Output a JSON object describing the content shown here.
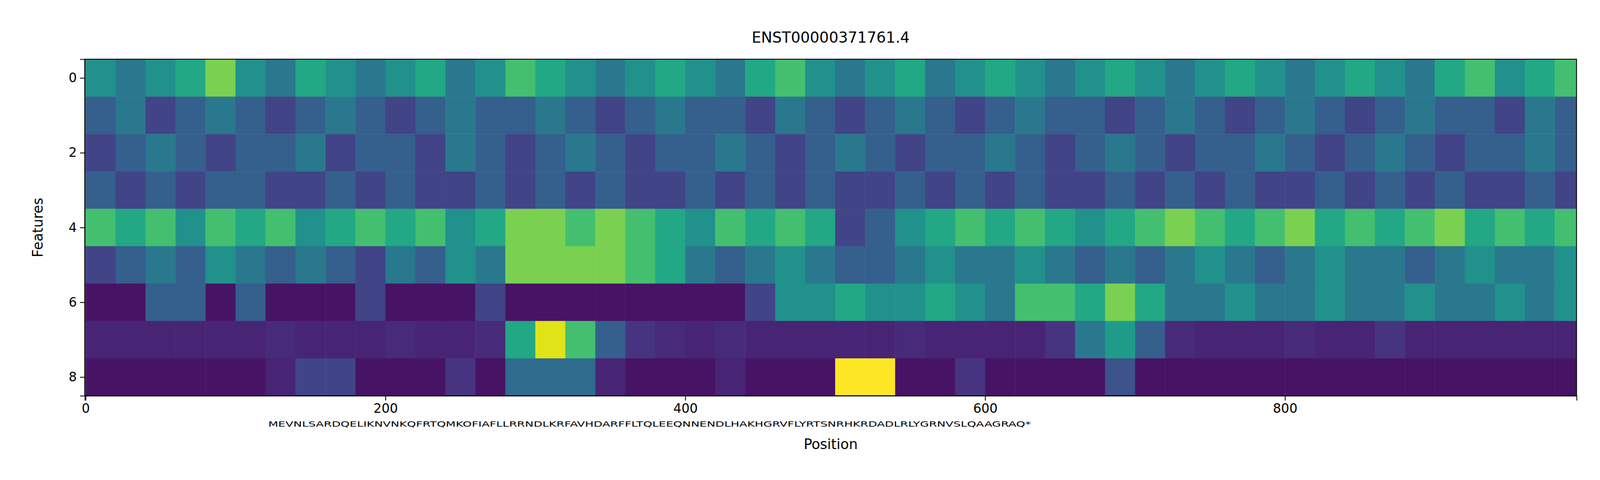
{
  "chart_data": {
    "type": "heatmap",
    "title": "ENST00000371761.4",
    "x_label": "Position",
    "y_label": "Features",
    "annotations": [
      "MEVNLSARDQELIKNVNKQFRTQMKOFIAFLLRRNDLKRFAVHDARFFLTQLEEQNNENDLHAKHGRVFLYRTSNRHKRDADLRLYGRNVSLQAAGRAQ*"
    ],
    "x_edges": [
      0,
      20,
      40,
      60,
      80,
      100,
      120,
      140,
      160,
      180,
      200,
      220,
      240,
      260,
      280,
      300,
      320,
      340,
      360,
      380,
      400,
      420,
      440,
      460,
      480,
      500,
      520,
      540,
      560,
      580,
      600,
      620,
      640,
      660,
      680,
      700,
      720,
      740,
      760,
      780,
      800,
      820,
      840,
      860,
      880,
      900,
      920,
      940,
      960,
      980,
      1000
    ],
    "y": [
      0,
      1,
      2,
      3,
      4,
      5,
      6,
      7,
      8
    ],
    "z": [
      [
        0.5,
        0.4,
        0.5,
        0.6,
        0.8,
        0.5,
        0.4,
        0.6,
        0.5,
        0.4,
        0.5,
        0.6,
        0.4,
        0.5,
        0.7,
        0.6,
        0.5,
        0.4,
        0.5,
        0.6,
        0.5,
        0.4,
        0.6,
        0.7,
        0.5,
        0.4,
        0.5,
        0.6,
        0.4,
        0.5,
        0.6,
        0.5,
        0.4,
        0.5,
        0.6,
        0.5,
        0.4,
        0.5,
        0.6,
        0.5,
        0.4,
        0.5,
        0.6,
        0.5,
        0.4,
        0.6,
        0.7,
        0.5,
        0.6,
        0.7
      ],
      [
        0.3,
        0.4,
        0.2,
        0.3,
        0.4,
        0.3,
        0.2,
        0.3,
        0.4,
        0.3,
        0.2,
        0.3,
        0.4,
        0.3,
        0.3,
        0.4,
        0.3,
        0.2,
        0.3,
        0.4,
        0.3,
        0.3,
        0.2,
        0.4,
        0.3,
        0.2,
        0.3,
        0.4,
        0.3,
        0.2,
        0.3,
        0.4,
        0.3,
        0.3,
        0.2,
        0.3,
        0.4,
        0.3,
        0.2,
        0.3,
        0.4,
        0.3,
        0.2,
        0.3,
        0.4,
        0.3,
        0.3,
        0.2,
        0.4,
        0.3
      ],
      [
        0.2,
        0.3,
        0.4,
        0.3,
        0.2,
        0.3,
        0.3,
        0.4,
        0.2,
        0.3,
        0.3,
        0.2,
        0.4,
        0.3,
        0.2,
        0.3,
        0.4,
        0.3,
        0.2,
        0.3,
        0.3,
        0.4,
        0.3,
        0.2,
        0.3,
        0.4,
        0.3,
        0.2,
        0.3,
        0.3,
        0.4,
        0.3,
        0.2,
        0.3,
        0.4,
        0.3,
        0.2,
        0.3,
        0.3,
        0.4,
        0.3,
        0.2,
        0.3,
        0.4,
        0.3,
        0.2,
        0.3,
        0.3,
        0.4,
        0.3
      ],
      [
        0.3,
        0.2,
        0.3,
        0.2,
        0.3,
        0.3,
        0.2,
        0.2,
        0.3,
        0.2,
        0.3,
        0.2,
        0.2,
        0.3,
        0.2,
        0.3,
        0.2,
        0.3,
        0.2,
        0.2,
        0.3,
        0.2,
        0.3,
        0.2,
        0.3,
        0.2,
        0.2,
        0.3,
        0.2,
        0.3,
        0.2,
        0.3,
        0.2,
        0.2,
        0.3,
        0.2,
        0.3,
        0.2,
        0.3,
        0.2,
        0.2,
        0.3,
        0.2,
        0.3,
        0.2,
        0.3,
        0.2,
        0.2,
        0.3,
        0.2
      ],
      [
        0.7,
        0.6,
        0.7,
        0.5,
        0.7,
        0.6,
        0.7,
        0.5,
        0.6,
        0.7,
        0.6,
        0.7,
        0.5,
        0.6,
        0.8,
        0.8,
        0.7,
        0.8,
        0.7,
        0.6,
        0.5,
        0.7,
        0.6,
        0.7,
        0.6,
        0.2,
        0.3,
        0.5,
        0.6,
        0.7,
        0.6,
        0.7,
        0.6,
        0.5,
        0.6,
        0.7,
        0.8,
        0.7,
        0.6,
        0.7,
        0.8,
        0.6,
        0.7,
        0.6,
        0.7,
        0.8,
        0.6,
        0.7,
        0.6,
        0.7
      ],
      [
        0.2,
        0.3,
        0.4,
        0.3,
        0.5,
        0.4,
        0.3,
        0.4,
        0.3,
        0.2,
        0.4,
        0.3,
        0.5,
        0.4,
        0.8,
        0.8,
        0.8,
        0.8,
        0.7,
        0.6,
        0.4,
        0.3,
        0.4,
        0.5,
        0.4,
        0.3,
        0.3,
        0.4,
        0.5,
        0.4,
        0.4,
        0.5,
        0.4,
        0.3,
        0.4,
        0.3,
        0.4,
        0.5,
        0.4,
        0.3,
        0.4,
        0.5,
        0.4,
        0.4,
        0.3,
        0.4,
        0.5,
        0.4,
        0.4,
        0.5
      ],
      [
        0.05,
        0.05,
        0.3,
        0.3,
        0.05,
        0.3,
        0.05,
        0.05,
        0.05,
        0.2,
        0.05,
        0.05,
        0.05,
        0.2,
        0.05,
        0.05,
        0.05,
        0.05,
        0.05,
        0.05,
        0.05,
        0.05,
        0.2,
        0.5,
        0.5,
        0.6,
        0.5,
        0.5,
        0.6,
        0.5,
        0.4,
        0.7,
        0.7,
        0.6,
        0.8,
        0.6,
        0.4,
        0.4,
        0.5,
        0.4,
        0.4,
        0.5,
        0.4,
        0.4,
        0.5,
        0.4,
        0.4,
        0.5,
        0.4,
        0.5
      ],
      [
        0.1,
        0.1,
        0.1,
        0.1,
        0.1,
        0.1,
        0.12,
        0.1,
        0.1,
        0.1,
        0.12,
        0.1,
        0.1,
        0.12,
        0.6,
        0.95,
        0.7,
        0.3,
        0.15,
        0.12,
        0.1,
        0.12,
        0.1,
        0.1,
        0.1,
        0.1,
        0.1,
        0.12,
        0.1,
        0.1,
        0.1,
        0.1,
        0.15,
        0.4,
        0.55,
        0.3,
        0.12,
        0.1,
        0.1,
        0.1,
        0.12,
        0.1,
        0.1,
        0.15,
        0.1,
        0.1,
        0.1,
        0.1,
        0.1,
        0.1
      ],
      [
        0.05,
        0.05,
        0.05,
        0.05,
        0.05,
        0.05,
        0.1,
        0.2,
        0.2,
        0.05,
        0.05,
        0.05,
        0.15,
        0.05,
        0.35,
        0.35,
        0.35,
        0.1,
        0.05,
        0.05,
        0.05,
        0.1,
        0.05,
        0.05,
        0.05,
        1.0,
        1.0,
        0.05,
        0.05,
        0.15,
        0.05,
        0.05,
        0.05,
        0.05,
        0.25,
        0.05,
        0.05,
        0.05,
        0.05,
        0.05,
        0.05,
        0.05,
        0.05,
        0.05,
        0.05,
        0.05,
        0.05,
        0.05,
        0.05,
        0.05
      ]
    ],
    "zlim": [
      0,
      1
    ],
    "xlim": [
      -0.5,
      994.5
    ],
    "ylim": [
      8.5,
      -0.5
    ],
    "xticks": [
      0,
      200,
      400,
      600,
      800
    ],
    "yticks": [
      0,
      2,
      4,
      6,
      8
    ]
  }
}
